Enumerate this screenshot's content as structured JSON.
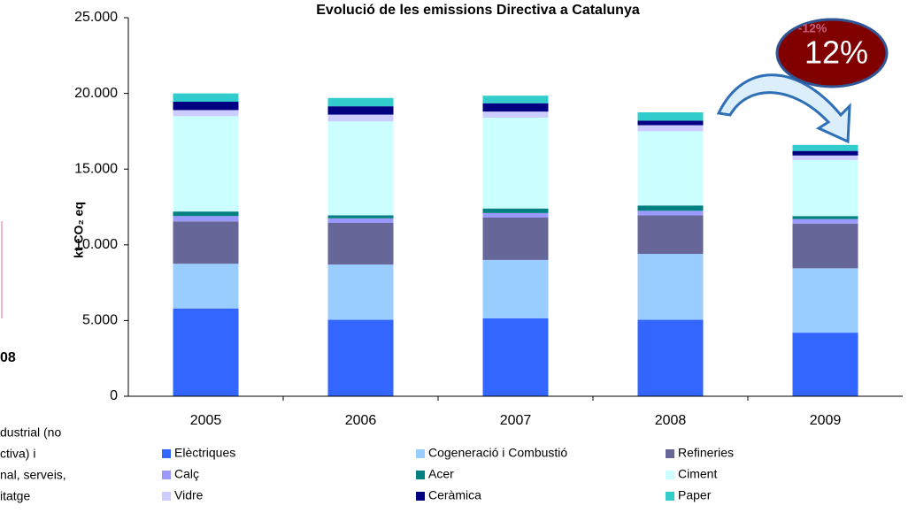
{
  "chart_data": {
    "type": "stacked_bar",
    "title": "Evolució de les emissions Directiva a Catalunya",
    "ylabel": "kt CO₂ eq",
    "categories": [
      "2005",
      "2006",
      "2007",
      "2008",
      "2009"
    ],
    "series": [
      {
        "name": "Elèctriques",
        "color": "#3366ff",
        "values": [
          5800,
          5050,
          5150,
          5050,
          4200
        ]
      },
      {
        "name": "Cogeneració i Combustió",
        "color": "#99ccff",
        "values": [
          2950,
          3650,
          3850,
          4350,
          4250
        ]
      },
      {
        "name": "Refineries",
        "color": "#666699",
        "values": [
          2800,
          2750,
          2800,
          2550,
          2950
        ]
      },
      {
        "name": "Calç",
        "color": "#9999ff",
        "values": [
          350,
          300,
          300,
          300,
          300
        ]
      },
      {
        "name": "Acer",
        "color": "#008080",
        "values": [
          300,
          200,
          300,
          350,
          200
        ]
      },
      {
        "name": "Ciment",
        "color": "#ccffff",
        "values": [
          6300,
          6200,
          6000,
          4900,
          3700
        ]
      },
      {
        "name": "Vidre",
        "color": "#ccccff",
        "values": [
          400,
          450,
          400,
          400,
          300
        ]
      },
      {
        "name": "Ceràmica",
        "color": "#000080",
        "values": [
          550,
          550,
          550,
          300,
          300
        ]
      },
      {
        "name": "Paper",
        "color": "#33cccc",
        "values": [
          550,
          550,
          500,
          550,
          400
        ]
      }
    ],
    "ylim": [
      0,
      25000
    ],
    "yticks": [
      0,
      {
        "value": 5000,
        "label": "5.000"
      },
      {
        "value": 10000,
        "label": "10.000"
      },
      {
        "value": 15000,
        "label": "15.000"
      },
      {
        "value": 20000,
        "label": "20.000"
      },
      {
        "value": 25000,
        "label": "25.000"
      }
    ],
    "annotations": {
      "badge": "12%",
      "badge_shadow": "-12%"
    },
    "left_fragments": [
      "08",
      "dustrial (no",
      "ctiva) i",
      "nal, serveis,",
      "itatge"
    ]
  }
}
